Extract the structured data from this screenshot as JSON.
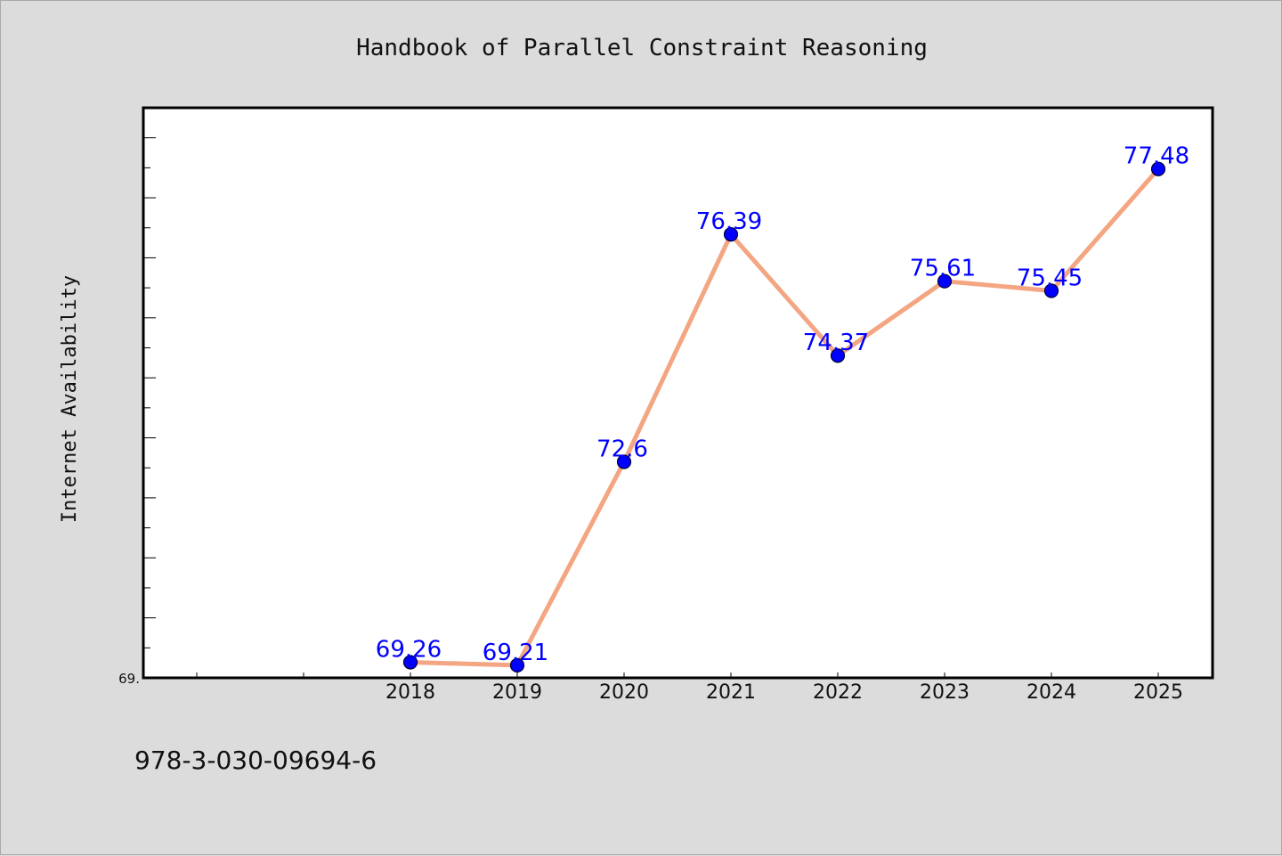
{
  "isbn": "978-3-030-09694-6",
  "colors": {
    "background": "#dcdcdc",
    "plot_area": "#ffffff",
    "line": "#f4a582",
    "marker": "#0000ff",
    "data_label": "#0000ff"
  },
  "chart_data": {
    "type": "line",
    "title": "Handbook of Parallel Constraint Reasoning",
    "xlabel": "",
    "ylabel": "Internet Availability",
    "categories": [
      "2018",
      "2019",
      "2020",
      "2021",
      "2022",
      "2023",
      "2024",
      "2025"
    ],
    "series": [
      {
        "values": [
          69.26,
          69.21,
          72.6,
          76.39,
          74.37,
          75.61,
          75.45,
          77.48
        ],
        "labels": [
          "69.26",
          "69.21",
          "72.6",
          "76.39",
          "74.37",
          "75.61",
          "75.45",
          "77.48"
        ]
      }
    ],
    "x_extra_slots_before": 2,
    "ylim": [
      69.0,
      78.5
    ],
    "y_tick_labels": [
      "69."
    ],
    "y_minor_step": 0.5,
    "grid": false,
    "legend": "none"
  }
}
